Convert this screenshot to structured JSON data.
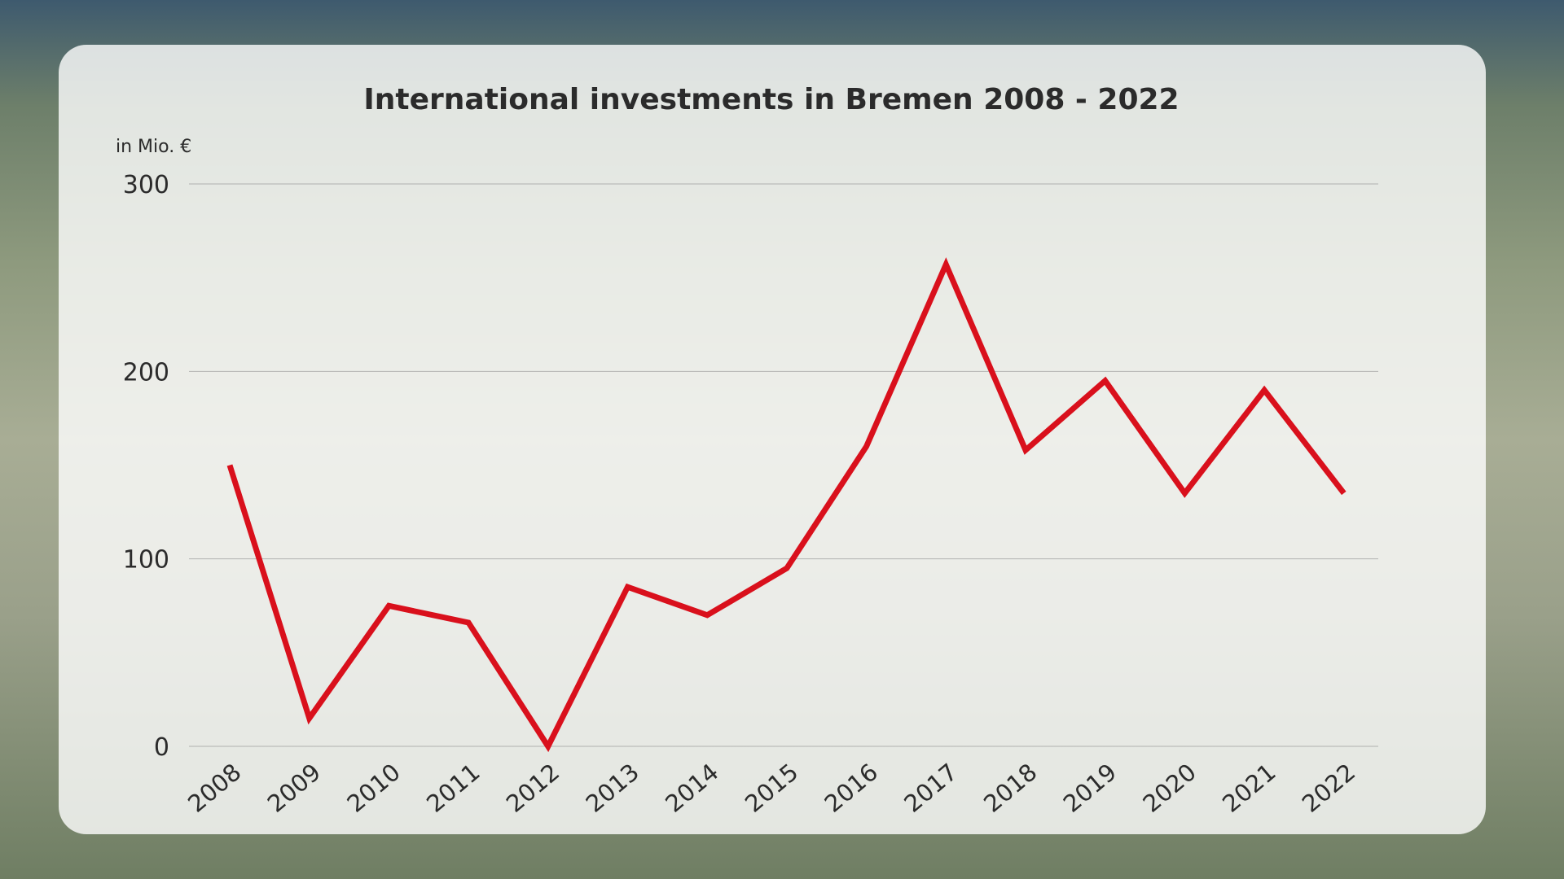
{
  "chart_data": {
    "type": "line",
    "title": "International investments in Bremen 2008 - 2022",
    "ylabel": "in Mio. €",
    "xlabel": "",
    "ylim": [
      0,
      300
    ],
    "yticks": [
      0,
      100,
      200,
      300
    ],
    "grid": true,
    "categories": [
      "2008",
      "2009",
      "2010",
      "2011",
      "2012",
      "2013",
      "2014",
      "2015",
      "2016",
      "2017",
      "2018",
      "2019",
      "2020",
      "2021",
      "2022"
    ],
    "series": [
      {
        "values": [
          150,
          15,
          75,
          66,
          0,
          85,
          70,
          95,
          160,
          257,
          158,
          195,
          135,
          190,
          135
        ],
        "color": "#d9101c"
      }
    ]
  }
}
